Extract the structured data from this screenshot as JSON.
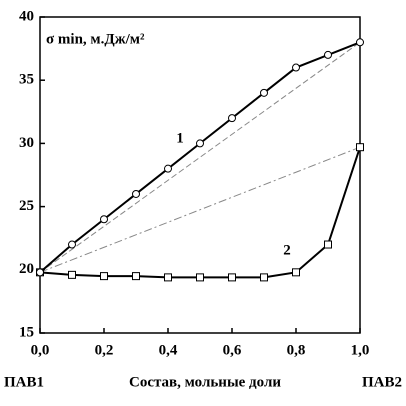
{
  "chart_data": {
    "type": "line",
    "y_label": "σ min, м.Дж/м²",
    "x_label": "Состав, мольные доли",
    "annotations": [
      "ПАВ1",
      "ПАВ2"
    ],
    "xlim": [
      0,
      1
    ],
    "xticks": [
      {
        "value": 0,
        "label": "0,0"
      },
      {
        "value": 0.2,
        "label": "0,2"
      },
      {
        "value": 0.4,
        "label": "0,4"
      },
      {
        "value": 0.6,
        "label": "0,6"
      },
      {
        "value": 0.8,
        "label": "0,8"
      },
      {
        "value": 1,
        "label": "1,0"
      }
    ],
    "ylim": [
      15,
      40
    ],
    "yticks": [
      15,
      20,
      25,
      30,
      35,
      40
    ],
    "series": [
      {
        "name": "1",
        "color": "#000000",
        "marker": "circle",
        "x": [
          0,
          0.1,
          0.2,
          0.3,
          0.4,
          0.5,
          0.6,
          0.7,
          0.8,
          0.9,
          1
        ],
        "values": [
          19.8,
          22,
          24,
          26,
          28,
          30,
          32,
          34,
          36,
          37,
          38
        ]
      },
      {
        "name": "2",
        "color": "#000000",
        "marker": "square",
        "x": [
          0,
          0.1,
          0.2,
          0.3,
          0.4,
          0.5,
          0.6,
          0.7,
          0.8,
          0.9,
          1
        ],
        "values": [
          19.8,
          19.6,
          19.5,
          19.5,
          19.4,
          19.4,
          19.4,
          19.4,
          19.8,
          22,
          29.7
        ]
      },
      {
        "color": "#888888",
        "dash": "6,3",
        "x": [
          0,
          1
        ],
        "values": [
          19.8,
          38
        ]
      },
      {
        "color": "#888888",
        "dash": "8,3,2,3",
        "x": [
          0,
          1
        ],
        "values": [
          19.8,
          29.7
        ]
      }
    ]
  }
}
